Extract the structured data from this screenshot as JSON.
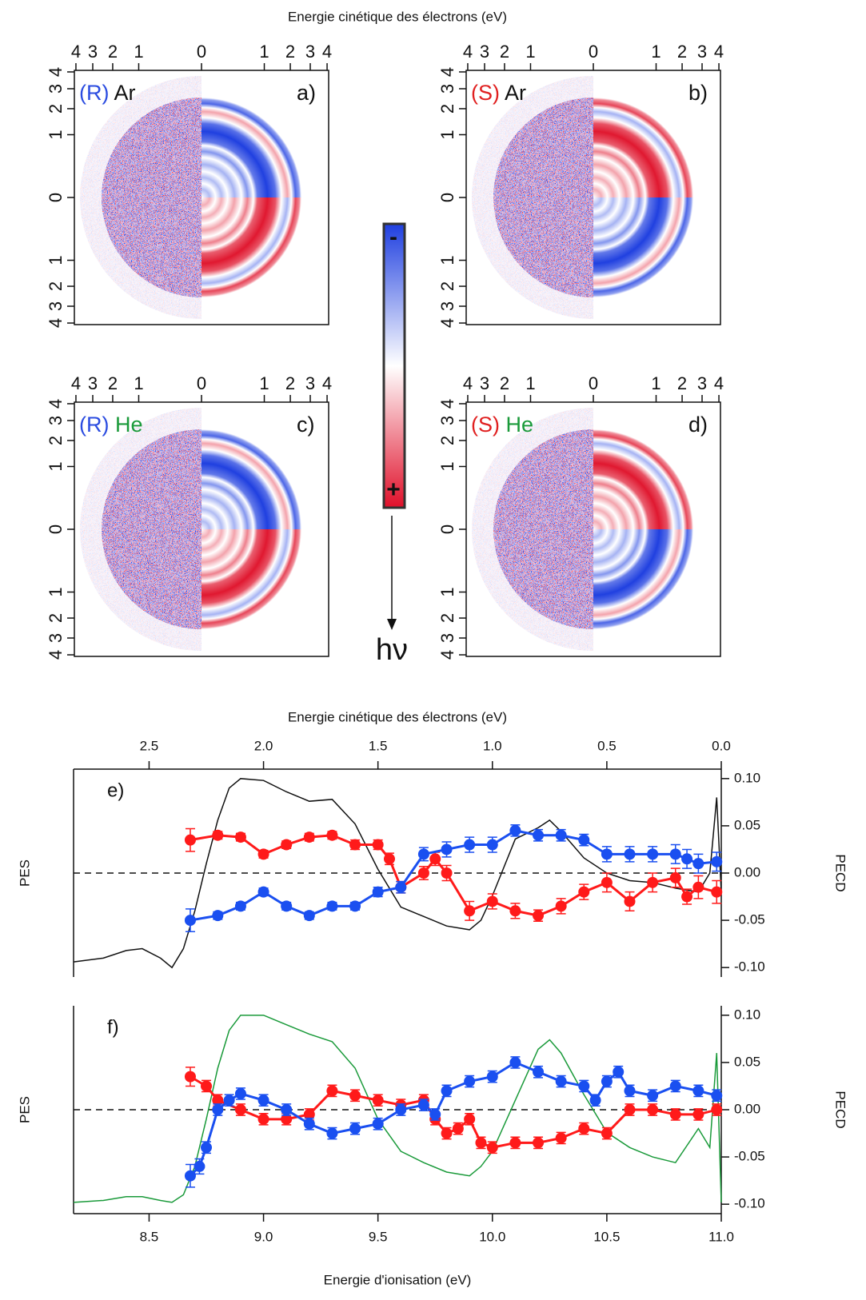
{
  "figure_title": "Energie cinétique des électrons (eV)",
  "colorbar": {
    "minus_label": "-",
    "plus_label": "+",
    "top_color": "#1f3fe0",
    "bottom_color": "#e0102a"
  },
  "light_label": "hν",
  "chart_data": [
    {
      "type": "image",
      "panel_label": "a)",
      "enantiomer": "(R)",
      "enantiomer_color": "#2b4ce0",
      "gas": "Ar",
      "gas_color": "#111111",
      "upper_color": "#2040e0",
      "lower_color": "#e01830",
      "scale": "sqrt",
      "xlim": [
        -4.1,
        4.1
      ],
      "ylim": [
        -4.1,
        4.1
      ],
      "xticks": [
        {
          "value": -4,
          "label": "4"
        },
        {
          "value": -3,
          "label": "3"
        },
        {
          "value": -2,
          "label": "2"
        },
        {
          "value": -1,
          "label": "1"
        },
        0,
        1,
        2,
        3,
        4
      ],
      "yticks": [
        {
          "value": 4,
          "label": "4"
        },
        {
          "value": 3,
          "label": "3"
        },
        {
          "value": 2,
          "label": "2"
        },
        {
          "value": 1,
          "label": "1"
        },
        0,
        {
          "value": -1,
          "label": "1"
        },
        {
          "value": -2,
          "label": "2"
        },
        {
          "value": -3,
          "label": "3"
        },
        {
          "value": -4,
          "label": "4"
        }
      ]
    },
    {
      "type": "image",
      "panel_label": "b)",
      "enantiomer": "(S)",
      "enantiomer_color": "#e02020",
      "gas": "Ar",
      "gas_color": "#111111",
      "upper_color": "#e01830",
      "lower_color": "#2040e0",
      "scale": "sqrt",
      "xlim": [
        -4.1,
        4.1
      ],
      "ylim": [
        -4.1,
        4.1
      ],
      "xticks": [
        {
          "value": -4,
          "label": "4"
        },
        {
          "value": -3,
          "label": "3"
        },
        {
          "value": -2,
          "label": "2"
        },
        {
          "value": -1,
          "label": "1"
        },
        0,
        1,
        2,
        3,
        4
      ],
      "yticks": [
        {
          "value": 4,
          "label": "4"
        },
        {
          "value": 3,
          "label": "3"
        },
        {
          "value": 2,
          "label": "2"
        },
        {
          "value": 1,
          "label": "1"
        },
        0,
        {
          "value": -1,
          "label": "1"
        },
        {
          "value": -2,
          "label": "2"
        },
        {
          "value": -3,
          "label": "3"
        },
        {
          "value": -4,
          "label": "4"
        }
      ]
    },
    {
      "type": "image",
      "panel_label": "c)",
      "enantiomer": "(R)",
      "enantiomer_color": "#2b4ce0",
      "gas": "He",
      "gas_color": "#1a9a3a",
      "upper_color": "#2040e0",
      "lower_color": "#e01830",
      "scale": "sqrt",
      "xlim": [
        -4.1,
        4.1
      ],
      "ylim": [
        -4.1,
        4.1
      ],
      "xticks": [
        {
          "value": -4,
          "label": "4"
        },
        {
          "value": -3,
          "label": "3"
        },
        {
          "value": -2,
          "label": "2"
        },
        {
          "value": -1,
          "label": "1"
        },
        0,
        1,
        2,
        3,
        4
      ],
      "yticks": [
        {
          "value": 4,
          "label": "4"
        },
        {
          "value": 3,
          "label": "3"
        },
        {
          "value": 2,
          "label": "2"
        },
        {
          "value": 1,
          "label": "1"
        },
        0,
        {
          "value": -1,
          "label": "1"
        },
        {
          "value": -2,
          "label": "2"
        },
        {
          "value": -3,
          "label": "3"
        },
        {
          "value": -4,
          "label": "4"
        }
      ]
    },
    {
      "type": "image",
      "panel_label": "d)",
      "enantiomer": "(S)",
      "enantiomer_color": "#e02020",
      "gas": "He",
      "gas_color": "#1a9a3a",
      "upper_color": "#e01830",
      "lower_color": "#2040e0",
      "scale": "sqrt",
      "xlim": [
        -4.1,
        4.1
      ],
      "ylim": [
        -4.1,
        4.1
      ],
      "xticks": [
        {
          "value": -4,
          "label": "4"
        },
        {
          "value": -3,
          "label": "3"
        },
        {
          "value": -2,
          "label": "2"
        },
        {
          "value": -1,
          "label": "1"
        },
        0,
        1,
        2,
        3,
        4
      ],
      "yticks": [
        {
          "value": 4,
          "label": "4"
        },
        {
          "value": 3,
          "label": "3"
        },
        {
          "value": 2,
          "label": "2"
        },
        {
          "value": 1,
          "label": "1"
        },
        0,
        {
          "value": -1,
          "label": "1"
        },
        {
          "value": -2,
          "label": "2"
        },
        {
          "value": -3,
          "label": "3"
        },
        {
          "value": -4,
          "label": "4"
        }
      ]
    },
    {
      "type": "line",
      "panel_label": "e)",
      "ylabel": "PES",
      "y2label": "PECD",
      "zero_line": true,
      "top_xlabel": "Energie cinétique des électrons (eV)",
      "top_xlim": [
        2.83,
        0.0
      ],
      "top_xticks": [
        2.5,
        {
          "value": 2.0,
          "label": "2.0"
        },
        1.5,
        {
          "value": 1.0,
          "label": "1.0"
        },
        0.5,
        {
          "value": 0.0,
          "label": "0.0"
        }
      ],
      "xlim": [
        8.17,
        11.0
      ],
      "ylim": [
        -0.05,
        1.05
      ],
      "y2lim": [
        -0.11,
        0.11
      ],
      "y2ticks": [
        {
          "value": 0.1,
          "label": "0.10"
        },
        0.05,
        {
          "value": 0.0,
          "label": "0.00"
        },
        -0.05,
        {
          "value": -0.1,
          "label": "-0.10"
        }
      ],
      "series": [
        {
          "color": "#111111",
          "x": [
            8.17,
            8.3,
            8.4,
            8.47,
            8.55,
            8.6,
            8.65,
            8.7,
            8.75,
            8.8,
            8.85,
            8.9,
            9.0,
            9.1,
            9.2,
            9.3,
            9.4,
            9.5,
            9.6,
            9.7,
            9.8,
            9.9,
            9.95,
            10.0,
            10.1,
            10.2,
            10.25,
            10.3,
            10.4,
            10.5,
            10.6,
            10.7,
            10.8,
            10.9,
            10.95,
            10.98,
            11.0
          ],
          "values": [
            0.03,
            0.05,
            0.09,
            0.1,
            0.05,
            0.0,
            0.1,
            0.3,
            0.55,
            0.78,
            0.95,
            1.0,
            0.99,
            0.93,
            0.88,
            0.89,
            0.76,
            0.52,
            0.32,
            0.27,
            0.22,
            0.2,
            0.25,
            0.38,
            0.68,
            0.74,
            0.78,
            0.72,
            0.58,
            0.5,
            0.46,
            0.45,
            0.42,
            0.4,
            0.5,
            0.9,
            0.4
          ]
        },
        {
          "color": "#ff1a1a",
          "axis": "y2",
          "marker": "circle",
          "x": [
            8.68,
            8.8,
            8.9,
            9.0,
            9.1,
            9.2,
            9.3,
            9.4,
            9.5,
            9.55,
            9.6,
            9.7,
            9.75,
            9.8,
            9.9,
            10.0,
            10.1,
            10.2,
            10.3,
            10.4,
            10.5,
            10.6,
            10.7,
            10.8,
            10.85,
            10.9,
            10.98
          ],
          "values": [
            0.035,
            0.04,
            0.038,
            0.02,
            0.03,
            0.038,
            0.04,
            0.03,
            0.03,
            0.015,
            -0.015,
            0.0,
            0.015,
            0.0,
            -0.04,
            -0.03,
            -0.04,
            -0.045,
            -0.035,
            -0.02,
            -0.01,
            -0.03,
            -0.01,
            -0.005,
            -0.025,
            -0.015,
            -0.02
          ],
          "errors": [
            0.012,
            0.004,
            0.004,
            0.004,
            0.004,
            0.004,
            0.004,
            0.005,
            0.005,
            0.006,
            0.006,
            0.007,
            0.007,
            0.008,
            0.01,
            0.008,
            0.008,
            0.006,
            0.008,
            0.008,
            0.01,
            0.01,
            0.01,
            0.01,
            0.008,
            0.012,
            0.012
          ]
        },
        {
          "color": "#1a4ff0",
          "axis": "y2",
          "marker": "circle",
          "x": [
            8.68,
            8.8,
            8.9,
            9.0,
            9.1,
            9.2,
            9.3,
            9.4,
            9.5,
            9.6,
            9.7,
            9.8,
            9.9,
            10.0,
            10.1,
            10.2,
            10.3,
            10.4,
            10.5,
            10.6,
            10.7,
            10.8,
            10.85,
            10.9,
            10.98
          ],
          "values": [
            -0.05,
            -0.045,
            -0.035,
            -0.02,
            -0.035,
            -0.045,
            -0.035,
            -0.035,
            -0.02,
            -0.015,
            0.02,
            0.025,
            0.03,
            0.03,
            0.045,
            0.04,
            0.04,
            0.035,
            0.02,
            0.02,
            0.02,
            0.02,
            0.015,
            0.01,
            0.012
          ],
          "errors": [
            0.012,
            0.004,
            0.004,
            0.004,
            0.004,
            0.004,
            0.004,
            0.004,
            0.005,
            0.006,
            0.007,
            0.008,
            0.008,
            0.008,
            0.006,
            0.006,
            0.006,
            0.006,
            0.008,
            0.008,
            0.008,
            0.01,
            0.01,
            0.01,
            0.01
          ]
        }
      ]
    },
    {
      "type": "line",
      "panel_label": "f)",
      "ylabel": "PES",
      "y2label": "PECD",
      "zero_line": true,
      "xlabel": "Energie d'ionisation (eV)",
      "xticks": [
        8.5,
        {
          "value": 9.0,
          "label": "9.0"
        },
        9.5,
        {
          "value": 10.0,
          "label": "10.0"
        },
        10.5,
        {
          "value": 11.0,
          "label": "11.0"
        }
      ],
      "xlim": [
        8.17,
        11.0
      ],
      "ylim": [
        -0.05,
        1.05
      ],
      "y2lim": [
        -0.11,
        0.11
      ],
      "y2ticks": [
        {
          "value": 0.1,
          "label": "0.10"
        },
        0.05,
        {
          "value": 0.0,
          "label": "0.00"
        },
        -0.05,
        {
          "value": -0.1,
          "label": "-0.10"
        }
      ],
      "series": [
        {
          "color": "#1a9a3a",
          "x": [
            8.17,
            8.3,
            8.4,
            8.47,
            8.55,
            8.6,
            8.65,
            8.7,
            8.75,
            8.8,
            8.85,
            8.9,
            9.0,
            9.1,
            9.2,
            9.3,
            9.4,
            9.5,
            9.6,
            9.7,
            9.8,
            9.9,
            9.95,
            10.0,
            10.1,
            10.2,
            10.25,
            10.3,
            10.4,
            10.5,
            10.6,
            10.7,
            10.8,
            10.9,
            10.95,
            10.98,
            11.0
          ],
          "values": [
            0.01,
            0.02,
            0.04,
            0.04,
            0.02,
            0.01,
            0.05,
            0.2,
            0.45,
            0.72,
            0.92,
            1.0,
            1.0,
            0.95,
            0.9,
            0.86,
            0.72,
            0.45,
            0.28,
            0.22,
            0.17,
            0.15,
            0.2,
            0.28,
            0.55,
            0.82,
            0.87,
            0.8,
            0.58,
            0.38,
            0.3,
            0.25,
            0.22,
            0.4,
            0.3,
            0.8,
            0.01
          ]
        },
        {
          "color": "#ff1a1a",
          "axis": "y2",
          "marker": "circle",
          "x": [
            8.68,
            8.75,
            8.8,
            8.9,
            9.0,
            9.1,
            9.2,
            9.3,
            9.4,
            9.5,
            9.6,
            9.7,
            9.75,
            9.8,
            9.85,
            9.9,
            9.95,
            10.0,
            10.1,
            10.2,
            10.3,
            10.4,
            10.5,
            10.6,
            10.7,
            10.8,
            10.9,
            10.98
          ],
          "values": [
            0.035,
            0.025,
            0.01,
            0.0,
            -0.01,
            -0.01,
            -0.005,
            0.02,
            0.015,
            0.01,
            0.005,
            0.01,
            -0.01,
            -0.025,
            -0.02,
            -0.01,
            -0.035,
            -0.04,
            -0.035,
            -0.035,
            -0.03,
            -0.02,
            -0.025,
            0.0,
            0.0,
            -0.005,
            -0.005,
            0.0
          ],
          "errors": [
            0.01,
            0.006,
            0.006,
            0.006,
            0.006,
            0.006,
            0.006,
            0.006,
            0.006,
            0.006,
            0.006,
            0.006,
            0.006,
            0.006,
            0.006,
            0.006,
            0.006,
            0.006,
            0.006,
            0.006,
            0.006,
            0.006,
            0.006,
            0.006,
            0.006,
            0.006,
            0.006,
            0.006
          ]
        },
        {
          "color": "#1a4ff0",
          "axis": "y2",
          "marker": "circle",
          "x": [
            8.68,
            8.72,
            8.75,
            8.8,
            8.85,
            8.9,
            9.0,
            9.1,
            9.2,
            9.3,
            9.4,
            9.5,
            9.6,
            9.7,
            9.75,
            9.8,
            9.9,
            10.0,
            10.1,
            10.2,
            10.3,
            10.4,
            10.45,
            10.5,
            10.55,
            10.6,
            10.7,
            10.8,
            10.9,
            10.98
          ],
          "values": [
            -0.07,
            -0.06,
            -0.04,
            0.0,
            0.01,
            0.017,
            0.01,
            0.0,
            -0.015,
            -0.025,
            -0.02,
            -0.015,
            0.0,
            0.005,
            -0.005,
            0.02,
            0.03,
            0.035,
            0.05,
            0.04,
            0.03,
            0.025,
            0.01,
            0.03,
            0.04,
            0.02,
            0.015,
            0.025,
            0.02,
            0.015
          ],
          "errors": [
            0.012,
            0.008,
            0.006,
            0.006,
            0.006,
            0.006,
            0.006,
            0.006,
            0.006,
            0.006,
            0.006,
            0.006,
            0.006,
            0.006,
            0.006,
            0.006,
            0.006,
            0.006,
            0.006,
            0.006,
            0.006,
            0.006,
            0.006,
            0.006,
            0.006,
            0.006,
            0.006,
            0.006,
            0.006,
            0.006
          ]
        }
      ]
    }
  ]
}
